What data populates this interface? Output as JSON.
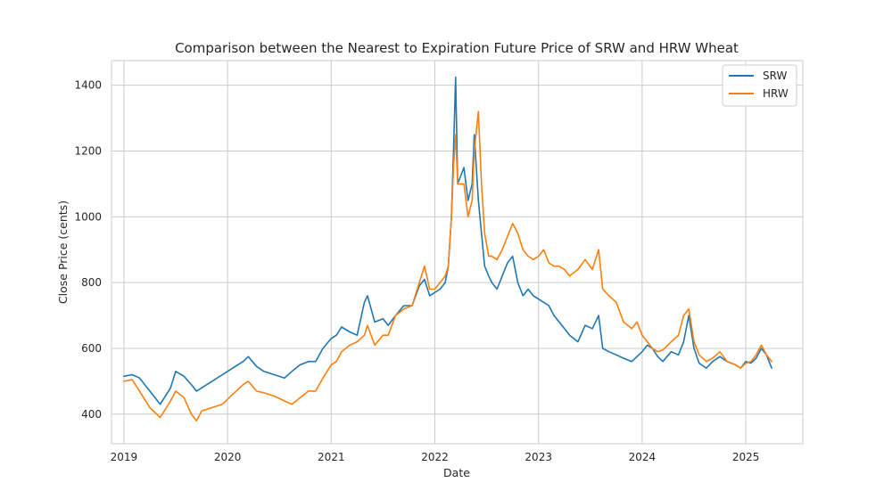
{
  "chart_data": {
    "type": "line",
    "title": "Comparison between the Nearest to Expiration Future Price of SRW and HRW Wheat",
    "xlabel": "Date",
    "ylabel": "Close Price (cents)",
    "xlim": [
      2018.88,
      2025.55
    ],
    "ylim": [
      310,
      1475
    ],
    "x_ticks": [
      2019,
      2020,
      2021,
      2022,
      2023,
      2024,
      2025
    ],
    "x_tick_labels": [
      "2019",
      "2020",
      "2021",
      "2022",
      "2023",
      "2024",
      "2025"
    ],
    "y_ticks": [
      400,
      600,
      800,
      1000,
      1200,
      1400
    ],
    "y_tick_labels": [
      "400",
      "600",
      "800",
      "1000",
      "1200",
      "1400"
    ],
    "grid": true,
    "legend_position": "top-right",
    "series": [
      {
        "name": "SRW",
        "color": "#1f77b4",
        "x": [
          2019.0,
          2019.08,
          2019.15,
          2019.25,
          2019.35,
          2019.45,
          2019.5,
          2019.58,
          2019.65,
          2019.7,
          2019.75,
          2019.85,
          2019.95,
          2020.05,
          2020.15,
          2020.2,
          2020.28,
          2020.35,
          2020.45,
          2020.55,
          2020.62,
          2020.7,
          2020.78,
          2020.85,
          2020.92,
          2021.0,
          2021.05,
          2021.1,
          2021.18,
          2021.25,
          2021.32,
          2021.35,
          2021.42,
          2021.5,
          2021.55,
          2021.62,
          2021.7,
          2021.78,
          2021.85,
          2021.9,
          2021.95,
          2022.0,
          2022.05,
          2022.1,
          2022.13,
          2022.16,
          2022.18,
          2022.2,
          2022.22,
          2022.28,
          2022.32,
          2022.36,
          2022.38,
          2022.42,
          2022.45,
          2022.48,
          2022.52,
          2022.55,
          2022.6,
          2022.65,
          2022.7,
          2022.75,
          2022.8,
          2022.85,
          2022.9,
          2022.95,
          2023.0,
          2023.05,
          2023.1,
          2023.15,
          2023.2,
          2023.25,
          2023.3,
          2023.38,
          2023.45,
          2023.52,
          2023.58,
          2023.62,
          2023.68,
          2023.75,
          2023.82,
          2023.9,
          2023.95,
          2024.0,
          2024.05,
          2024.1,
          2024.15,
          2024.2,
          2024.28,
          2024.35,
          2024.4,
          2024.45,
          2024.5,
          2024.55,
          2024.62,
          2024.68,
          2024.75,
          2024.82,
          2024.9,
          2024.95,
          2025.0,
          2025.05,
          2025.1,
          2025.15,
          2025.2,
          2025.25
        ],
        "values": [
          515,
          520,
          510,
          470,
          430,
          480,
          530,
          515,
          490,
          470,
          480,
          500,
          520,
          540,
          560,
          575,
          545,
          530,
          520,
          510,
          530,
          550,
          560,
          560,
          600,
          630,
          640,
          665,
          650,
          640,
          740,
          760,
          680,
          690,
          670,
          700,
          730,
          730,
          790,
          810,
          760,
          770,
          780,
          800,
          850,
          1000,
          1200,
          1425,
          1100,
          1150,
          1050,
          1100,
          1250,
          1050,
          950,
          850,
          820,
          800,
          780,
          820,
          860,
          880,
          800,
          760,
          780,
          760,
          750,
          740,
          730,
          700,
          680,
          660,
          640,
          620,
          670,
          660,
          700,
          600,
          590,
          580,
          570,
          560,
          575,
          590,
          610,
          600,
          575,
          560,
          590,
          580,
          620,
          700,
          600,
          555,
          540,
          560,
          575,
          560,
          550,
          540,
          560,
          555,
          570,
          600,
          580,
          540
        ]
      },
      {
        "name": "HRW",
        "color": "#ff7f0e",
        "x": [
          2019.0,
          2019.08,
          2019.15,
          2019.25,
          2019.35,
          2019.45,
          2019.5,
          2019.58,
          2019.65,
          2019.7,
          2019.75,
          2019.85,
          2019.95,
          2020.05,
          2020.15,
          2020.2,
          2020.28,
          2020.35,
          2020.45,
          2020.55,
          2020.62,
          2020.7,
          2020.78,
          2020.85,
          2020.92,
          2021.0,
          2021.05,
          2021.1,
          2021.18,
          2021.25,
          2021.32,
          2021.35,
          2021.42,
          2021.5,
          2021.55,
          2021.62,
          2021.7,
          2021.78,
          2021.85,
          2021.9,
          2021.95,
          2022.0,
          2022.05,
          2022.1,
          2022.13,
          2022.16,
          2022.18,
          2022.2,
          2022.22,
          2022.28,
          2022.32,
          2022.36,
          2022.38,
          2022.42,
          2022.45,
          2022.48,
          2022.52,
          2022.55,
          2022.6,
          2022.65,
          2022.7,
          2022.75,
          2022.8,
          2022.85,
          2022.9,
          2022.95,
          2023.0,
          2023.05,
          2023.1,
          2023.15,
          2023.2,
          2023.25,
          2023.3,
          2023.38,
          2023.45,
          2023.52,
          2023.58,
          2023.62,
          2023.68,
          2023.75,
          2023.82,
          2023.9,
          2023.95,
          2024.0,
          2024.05,
          2024.1,
          2024.15,
          2024.2,
          2024.28,
          2024.35,
          2024.4,
          2024.45,
          2024.5,
          2024.55,
          2024.62,
          2024.68,
          2024.75,
          2024.82,
          2024.9,
          2024.95,
          2025.0,
          2025.05,
          2025.1,
          2025.15,
          2025.2,
          2025.25
        ],
        "values": [
          500,
          505,
          470,
          420,
          390,
          440,
          470,
          450,
          400,
          380,
          410,
          420,
          430,
          460,
          490,
          500,
          470,
          465,
          455,
          440,
          430,
          450,
          470,
          470,
          510,
          550,
          560,
          590,
          610,
          620,
          640,
          670,
          610,
          640,
          640,
          700,
          720,
          730,
          800,
          850,
          780,
          780,
          800,
          820,
          850,
          1000,
          1150,
          1250,
          1100,
          1100,
          1000,
          1050,
          1200,
          1320,
          1100,
          950,
          880,
          880,
          870,
          900,
          940,
          980,
          950,
          900,
          880,
          870,
          880,
          900,
          860,
          850,
          850,
          840,
          820,
          840,
          870,
          840,
          900,
          780,
          760,
          740,
          680,
          660,
          680,
          640,
          620,
          600,
          590,
          595,
          620,
          640,
          700,
          720,
          620,
          580,
          560,
          570,
          590,
          560,
          550,
          540,
          555,
          560,
          580,
          610,
          580,
          560
        ]
      }
    ]
  }
}
